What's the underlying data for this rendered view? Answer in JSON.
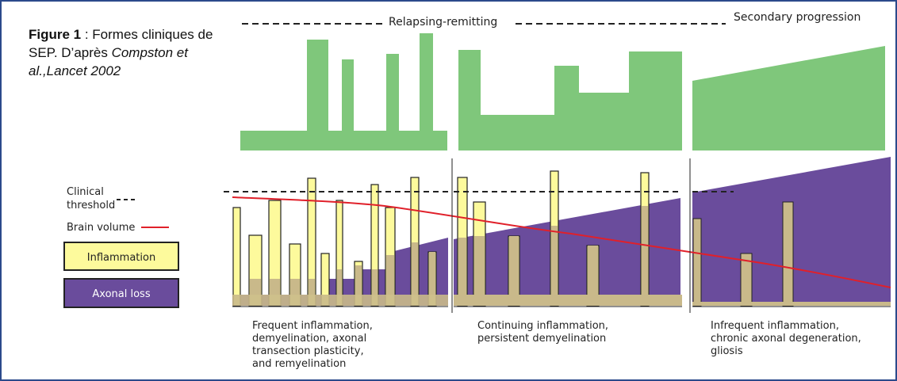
{
  "caption": {
    "figure_label": "Figure 1",
    "separator": " : ",
    "text": "Formes cliniques de SEP. D’après ",
    "citation": "Compston et al.,Lancet  2002"
  },
  "phases": {
    "relapsing": "Relapsing-remitting",
    "secondary": "Secondary progression"
  },
  "legend": {
    "clinical_threshold_line1": "Clinical",
    "clinical_threshold_line2": "threshold",
    "brain_volume": "Brain volume",
    "inflammation": "Inflammation",
    "axonal_loss": "Axonal loss"
  },
  "descriptions": {
    "phase1": [
      "Frequent inflammation,",
      "demyelination, axonal",
      "transection plasticity,",
      "and remyelination"
    ],
    "phase2": [
      "Continuing inflammation,",
      "persistent demyelination"
    ],
    "phase3": [
      "Infrequent inflammation,",
      "chronic axonal degeneration,",
      "gliosis"
    ]
  },
  "colors": {
    "clinical_green": "#7fc77b",
    "inflammation_yellow": "#fdfa9c",
    "axonal_purple": "#6a4c9c",
    "overlap_tan": "#c9b98a",
    "brain_volume_red": "#e0202a",
    "frame_blue": "#2b4a8b"
  }
}
